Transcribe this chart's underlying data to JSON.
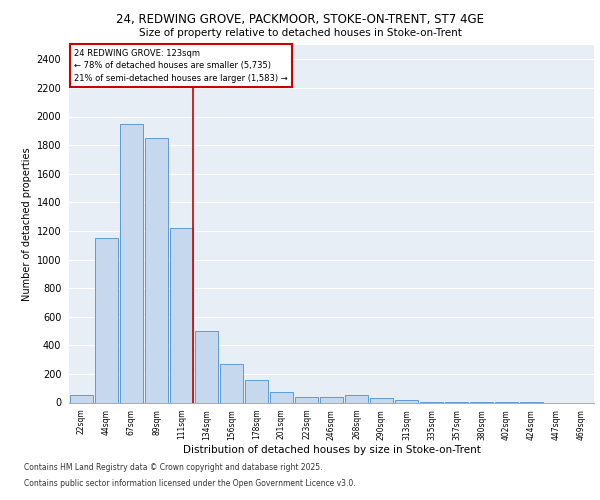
{
  "title_line1": "24, REDWING GROVE, PACKMOOR, STOKE-ON-TRENT, ST7 4GE",
  "title_line2": "Size of property relative to detached houses in Stoke-on-Trent",
  "xlabel": "Distribution of detached houses by size in Stoke-on-Trent",
  "ylabel": "Number of detached properties",
  "categories": [
    "22sqm",
    "44sqm",
    "67sqm",
    "89sqm",
    "111sqm",
    "134sqm",
    "156sqm",
    "178sqm",
    "201sqm",
    "223sqm",
    "246sqm",
    "268sqm",
    "290sqm",
    "313sqm",
    "335sqm",
    "357sqm",
    "380sqm",
    "402sqm",
    "424sqm",
    "447sqm",
    "469sqm"
  ],
  "values": [
    50,
    1150,
    1950,
    1850,
    1220,
    500,
    270,
    160,
    75,
    40,
    40,
    55,
    30,
    15,
    5,
    3,
    2,
    1,
    1,
    0,
    0
  ],
  "bar_color": "#c5d8ed",
  "bar_edge_color": "#5b9bd5",
  "vline_x_index": 4,
  "vline_color": "#cc0000",
  "annotation_line1": "24 REDWING GROVE: 123sqm",
  "annotation_line2": "← 78% of detached houses are smaller (5,735)",
  "annotation_line3": "21% of semi-detached houses are larger (1,583) →",
  "annotation_box_color": "#ffffff",
  "annotation_box_edge": "#cc0000",
  "ylim": [
    0,
    2500
  ],
  "yticks": [
    0,
    200,
    400,
    600,
    800,
    1000,
    1200,
    1400,
    1600,
    1800,
    2000,
    2200,
    2400
  ],
  "footer_line1": "Contains HM Land Registry data © Crown copyright and database right 2025.",
  "footer_line2": "Contains public sector information licensed under the Open Government Licence v3.0.",
  "bg_color": "#e8eef5",
  "grid_color": "#ffffff"
}
